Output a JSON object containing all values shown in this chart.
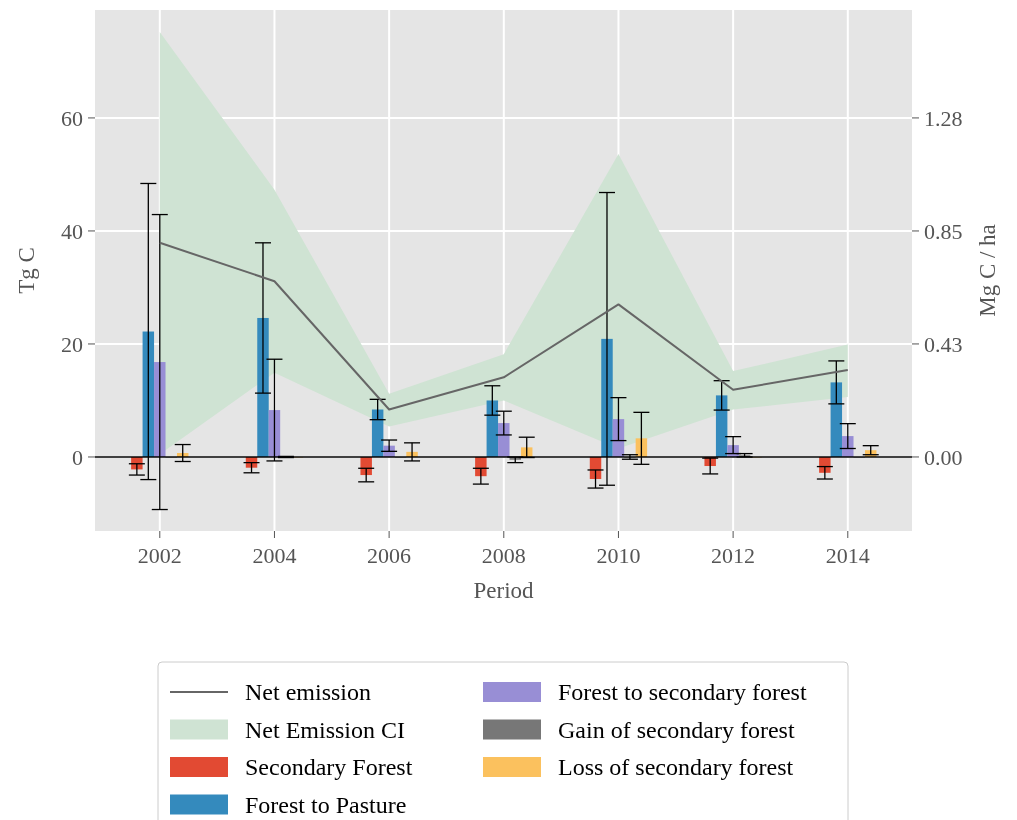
{
  "chart_data": {
    "type": "bar",
    "xlabel": "Period",
    "ylabel": "Tg C",
    "y2label": "Mg C / ha",
    "x": [
      2002,
      2004,
      2006,
      2008,
      2010,
      2012,
      2014
    ],
    "xlim": [
      2000.87,
      2015.12
    ],
    "xticks": [
      2002,
      2004,
      2006,
      2008,
      2010,
      2012,
      2014
    ],
    "ylim": [
      -13.1,
      79.1
    ],
    "yticks": [
      0,
      20,
      40,
      60
    ],
    "y2lim": [
      -0.2795,
      1.6875
    ],
    "y2ticks": [
      {
        "value": 0,
        "label": "0.00"
      },
      {
        "value": 0.4267,
        "label": "0.43"
      },
      {
        "value": 0.8533,
        "label": "0.85"
      },
      {
        "value": 1.28,
        "label": "1.28"
      }
    ],
    "grid": true,
    "legend": "bottom",
    "ref_lines": [
      {
        "axis": "y",
        "value": 0,
        "color": "#000000"
      }
    ],
    "series": [
      {
        "type": "line",
        "name": "Net emission",
        "color": "#666666",
        "values": [
          37.9,
          31.1,
          8.4,
          14.1,
          27.0,
          11.9,
          15.4
        ],
        "lower": [
          0.5,
          14.9,
          5.4,
          10.0,
          1.5,
          8.4,
          10.6
        ],
        "upper": [
          75.2,
          47.3,
          11.2,
          18.2,
          53.6,
          15.2,
          19.9
        ]
      },
      {
        "type": "area",
        "name": "Net Emission CI",
        "color": "#cfe3d3",
        "values": [
          null,
          null,
          null,
          null,
          null,
          null,
          null
        ]
      },
      {
        "name": "Secondary Forest",
        "color": "#e24a33",
        "values": [
          -2.2,
          -1.9,
          -3.2,
          -3.4,
          -3.9,
          -1.6,
          -2.8
        ],
        "errors": [
          1.0,
          0.9,
          1.2,
          1.4,
          1.6,
          1.4,
          1.1
        ]
      },
      {
        "name": "Forest to Pasture",
        "color": "#348abd",
        "values": [
          22.2,
          24.6,
          8.4,
          10.0,
          20.9,
          10.9,
          13.2
        ],
        "errors": [
          26.2,
          13.3,
          1.8,
          2.6,
          25.9,
          2.6,
          3.8
        ]
      },
      {
        "name": "Forest to secondary forest",
        "color": "#988ed5",
        "values": [
          16.8,
          8.3,
          2.0,
          6.0,
          6.7,
          2.1,
          3.7
        ],
        "errors": [
          26.1,
          9.0,
          1.0,
          2.1,
          3.8,
          1.5,
          2.2
        ]
      },
      {
        "name": "Gain of secondary forest",
        "color": "#777777",
        "values": [
          0,
          0,
          0,
          -0.5,
          0,
          0.3,
          0
        ],
        "errors": [
          null,
          0.1,
          null,
          0.5,
          0.4,
          0.3,
          null
        ]
      },
      {
        "name": "Loss of secondary forest",
        "color": "#fbc15e",
        "values": [
          0.7,
          0,
          0.9,
          1.7,
          3.3,
          0,
          1.2
        ],
        "errors": [
          1.5,
          null,
          1.6,
          1.8,
          4.6,
          null,
          0.8
        ]
      }
    ]
  }
}
